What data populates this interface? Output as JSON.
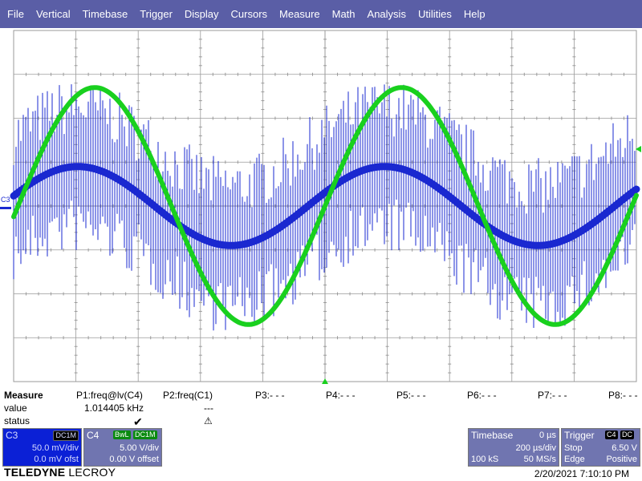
{
  "menu": [
    "File",
    "Vertical",
    "Timebase",
    "Trigger",
    "Display",
    "Cursors",
    "Measure",
    "Math",
    "Analysis",
    "Utilities",
    "Help"
  ],
  "scope": {
    "channel_marker": "C3",
    "grid_color": "#9a9a9a",
    "ch3_color": "#1a28d0",
    "ch4_color": "#19d01e",
    "trigger_marker_color": "#19d01e",
    "ch3_signal": {
      "frequency_khz": 1.014405,
      "amplitude_v": 0.045,
      "noise_pp_v": 0.2,
      "offset_v": 0.0
    },
    "ch4_signal": {
      "amplitude_v": 13.5,
      "offset_v": 0.0
    }
  },
  "measure": {
    "header": [
      "Measure",
      "P1:freq@lv(C4)",
      "P2:freq(C1)",
      "P3:- - -",
      "P4:- - -",
      "P5:- - -",
      "P6:- - -",
      "P7:- - -",
      "P8:- - -"
    ],
    "value_label": "value",
    "value_p1": "1.014405 kHz",
    "value_p2": "---",
    "status_label": "status",
    "status_p1_icon": "check-icon",
    "status_p2_icon": "warning-icon"
  },
  "c3": {
    "title": "C3",
    "tag": "DC1M",
    "vdiv": "50.0 mV/div",
    "offset": "0.0 mV ofst"
  },
  "c4": {
    "title": "C4",
    "tag1": "BwL",
    "tag2": "DC1M",
    "vdiv": "5.00 V/div",
    "offset": "0.00 V offset"
  },
  "timebase": {
    "label": "Timebase",
    "delay": "0 µs",
    "tdiv": "200 µs/div",
    "samples": "100 kS",
    "rate": "50 MS/s"
  },
  "trigger": {
    "label": "Trigger",
    "tag1": "C4",
    "tag2": "DC",
    "mode": "Stop",
    "level": "6.50 V",
    "type": "Edge",
    "slope": "Positive"
  },
  "brand": {
    "bold": "TELEDYNE",
    "light": "LECROY"
  },
  "datetime": "2/20/2021 7:10:10 PM"
}
